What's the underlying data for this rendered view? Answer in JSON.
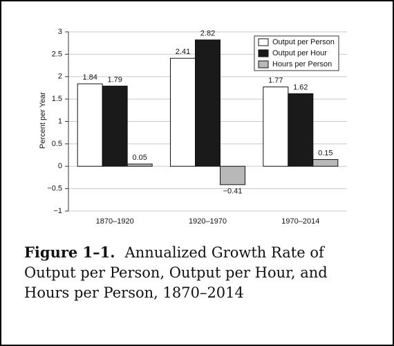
{
  "chart_data": {
    "type": "bar",
    "y_label": "Percent per Year",
    "categories": [
      "1870–1920",
      "1920–1970",
      "1970–2014"
    ],
    "series": [
      {
        "name": "Output per Person",
        "color": "#ffffff",
        "values": [
          1.84,
          2.41,
          1.77
        ]
      },
      {
        "name": "Output per Hour",
        "color": "#1a1a1a",
        "values": [
          1.79,
          2.82,
          1.62
        ]
      },
      {
        "name": "Hours per Person",
        "color": "#b8b8b8",
        "values": [
          0.05,
          -0.41,
          0.15
        ],
        "value_labels": [
          "0.05",
          "−0.41",
          "0.15"
        ]
      }
    ],
    "ylim": [
      -1,
      3
    ],
    "yticks": [
      {
        "value": -1,
        "label": "−1"
      },
      {
        "value": -0.5,
        "label": "−0.5"
      },
      0,
      0.5,
      1,
      1.5,
      2,
      2.5,
      3
    ],
    "grid": true,
    "legend": "top-right"
  },
  "figure": {
    "label": "Figure 1–1.",
    "caption": "Annualized Growth Rate of Output per Person, Output per Hour, and Hours per Person, 1870–2014"
  }
}
